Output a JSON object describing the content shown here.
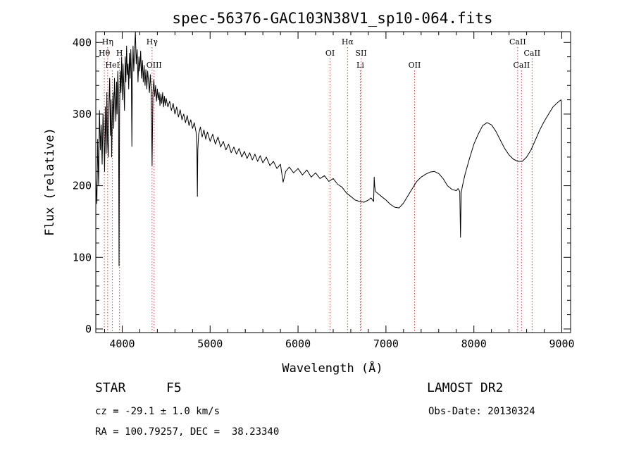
{
  "chart_data": {
    "type": "line",
    "title": "spec-56376-GAC103N38V1_sp10-064.fits",
    "xlabel": "Wavelength (Å)",
    "ylabel": "Flux (relative)",
    "xlim": [
      3700,
      9100
    ],
    "ylim": [
      -5,
      415
    ],
    "xticks": [
      4000,
      5000,
      6000,
      7000,
      8000,
      9000
    ],
    "yticks": [
      0,
      100,
      200,
      300,
      400
    ],
    "grid": false,
    "series": [
      {
        "values": [
          [
            3700,
            210
          ],
          [
            3712,
            175
          ],
          [
            3722,
            265
          ],
          [
            3732,
            200
          ],
          [
            3742,
            305
          ],
          [
            3752,
            250
          ],
          [
            3762,
            285
          ],
          [
            3772,
            230
          ],
          [
            3782,
            300
          ],
          [
            3792,
            265
          ],
          [
            3800,
            220
          ],
          [
            3808,
            310
          ],
          [
            3818,
            245
          ],
          [
            3826,
            330
          ],
          [
            3834,
            260
          ],
          [
            3842,
            240
          ],
          [
            3850,
            315
          ],
          [
            3858,
            350
          ],
          [
            3866,
            270
          ],
          [
            3874,
            320
          ],
          [
            3880,
            240
          ],
          [
            3888,
            300
          ],
          [
            3896,
            330
          ],
          [
            3904,
            280
          ],
          [
            3912,
            350
          ],
          [
            3920,
            320
          ],
          [
            3928,
            290
          ],
          [
            3936,
            345
          ],
          [
            3942,
            300
          ],
          [
            3950,
            360
          ],
          [
            3958,
            330
          ],
          [
            3964,
            88
          ],
          [
            3970,
            300
          ],
          [
            3978,
            360
          ],
          [
            3986,
            330
          ],
          [
            3994,
            380
          ],
          [
            4002,
            320
          ],
          [
            4010,
            370
          ],
          [
            4018,
            340
          ],
          [
            4026,
            305
          ],
          [
            4034,
            380
          ],
          [
            4042,
            345
          ],
          [
            4050,
            395
          ],
          [
            4058,
            355
          ],
          [
            4066,
            370
          ],
          [
            4074,
            335
          ],
          [
            4082,
            385
          ],
          [
            4090,
            350
          ],
          [
            4098,
            390
          ],
          [
            4104,
            360
          ],
          [
            4110,
            255
          ],
          [
            4116,
            350
          ],
          [
            4124,
            395
          ],
          [
            4132,
            360
          ],
          [
            4140,
            385
          ],
          [
            4150,
            415
          ],
          [
            4160,
            370
          ],
          [
            4170,
            390
          ],
          [
            4180,
            345
          ],
          [
            4190,
            380
          ],
          [
            4200,
            360
          ],
          [
            4210,
            388
          ],
          [
            4220,
            350
          ],
          [
            4230,
            375
          ],
          [
            4240,
            345
          ],
          [
            4250,
            368
          ],
          [
            4260,
            340
          ],
          [
            4270,
            362
          ],
          [
            4280,
            335
          ],
          [
            4290,
            360
          ],
          [
            4300,
            345
          ],
          [
            4310,
            330
          ],
          [
            4320,
            355
          ],
          [
            4330,
            335
          ],
          [
            4340,
            228
          ],
          [
            4350,
            330
          ],
          [
            4360,
            348
          ],
          [
            4370,
            325
          ],
          [
            4380,
            340
          ],
          [
            4390,
            318
          ],
          [
            4400,
            335
          ],
          [
            4410,
            320
          ],
          [
            4420,
            330
          ],
          [
            4430,
            312
          ],
          [
            4440,
            328
          ],
          [
            4450,
            315
          ],
          [
            4460,
            330
          ],
          [
            4470,
            310
          ],
          [
            4480,
            325
          ],
          [
            4490,
            312
          ],
          [
            4500,
            322
          ],
          [
            4520,
            310
          ],
          [
            4540,
            318
          ],
          [
            4560,
            305
          ],
          [
            4580,
            315
          ],
          [
            4600,
            300
          ],
          [
            4620,
            310
          ],
          [
            4640,
            296
          ],
          [
            4660,
            306
          ],
          [
            4680,
            292
          ],
          [
            4700,
            300
          ],
          [
            4720,
            288
          ],
          [
            4740,
            298
          ],
          [
            4760,
            284
          ],
          [
            4780,
            292
          ],
          [
            4800,
            280
          ],
          [
            4820,
            288
          ],
          [
            4840,
            275
          ],
          [
            4850,
            255
          ],
          [
            4855,
            185
          ],
          [
            4860,
            250
          ],
          [
            4870,
            272
          ],
          [
            4890,
            282
          ],
          [
            4910,
            268
          ],
          [
            4930,
            278
          ],
          [
            4950,
            265
          ],
          [
            4970,
            275
          ],
          [
            5000,
            262
          ],
          [
            5030,
            272
          ],
          [
            5060,
            258
          ],
          [
            5090,
            268
          ],
          [
            5120,
            254
          ],
          [
            5150,
            262
          ],
          [
            5180,
            250
          ],
          [
            5210,
            258
          ],
          [
            5240,
            246
          ],
          [
            5270,
            254
          ],
          [
            5300,
            244
          ],
          [
            5330,
            252
          ],
          [
            5360,
            240
          ],
          [
            5390,
            248
          ],
          [
            5420,
            238
          ],
          [
            5450,
            246
          ],
          [
            5480,
            236
          ],
          [
            5510,
            244
          ],
          [
            5540,
            234
          ],
          [
            5570,
            242
          ],
          [
            5600,
            232
          ],
          [
            5640,
            240
          ],
          [
            5680,
            228
          ],
          [
            5720,
            234
          ],
          [
            5760,
            224
          ],
          [
            5800,
            230
          ],
          [
            5830,
            205
          ],
          [
            5860,
            220
          ],
          [
            5900,
            226
          ],
          [
            5950,
            218
          ],
          [
            6000,
            224
          ],
          [
            6050,
            215
          ],
          [
            6100,
            222
          ],
          [
            6150,
            212
          ],
          [
            6200,
            218
          ],
          [
            6250,
            210
          ],
          [
            6300,
            214
          ],
          [
            6350,
            206
          ],
          [
            6400,
            210
          ],
          [
            6450,
            202
          ],
          [
            6500,
            198
          ],
          [
            6550,
            190
          ],
          [
            6600,
            185
          ],
          [
            6650,
            180
          ],
          [
            6700,
            178
          ],
          [
            6750,
            177
          ],
          [
            6800,
            180
          ],
          [
            6830,
            183
          ],
          [
            6860,
            178
          ],
          [
            6866,
            212
          ],
          [
            6872,
            200
          ],
          [
            6880,
            192
          ],
          [
            6900,
            190
          ],
          [
            6950,
            185
          ],
          [
            7000,
            180
          ],
          [
            7050,
            174
          ],
          [
            7100,
            170
          ],
          [
            7150,
            169
          ],
          [
            7200,
            176
          ],
          [
            7250,
            186
          ],
          [
            7300,
            196
          ],
          [
            7350,
            206
          ],
          [
            7400,
            212
          ],
          [
            7450,
            216
          ],
          [
            7500,
            219
          ],
          [
            7550,
            220
          ],
          [
            7600,
            217
          ],
          [
            7650,
            210
          ],
          [
            7700,
            200
          ],
          [
            7750,
            195
          ],
          [
            7800,
            193
          ],
          [
            7820,
            196
          ],
          [
            7840,
            192
          ],
          [
            7848,
            128
          ],
          [
            7856,
            190
          ],
          [
            7870,
            200
          ],
          [
            7900,
            216
          ],
          [
            7950,
            238
          ],
          [
            8000,
            258
          ],
          [
            8050,
            272
          ],
          [
            8100,
            284
          ],
          [
            8150,
            288
          ],
          [
            8200,
            285
          ],
          [
            8250,
            276
          ],
          [
            8300,
            264
          ],
          [
            8350,
            252
          ],
          [
            8400,
            243
          ],
          [
            8450,
            237
          ],
          [
            8500,
            234
          ],
          [
            8550,
            234
          ],
          [
            8600,
            240
          ],
          [
            8650,
            250
          ],
          [
            8700,
            264
          ],
          [
            8750,
            278
          ],
          [
            8800,
            290
          ],
          [
            8850,
            300
          ],
          [
            8900,
            310
          ],
          [
            8950,
            316
          ],
          [
            8990,
            320
          ],
          [
            8996,
            316
          ],
          [
            9000,
            5
          ]
        ]
      }
    ],
    "line_markers": [
      {
        "label": "Hη",
        "x": 3835,
        "row": 0
      },
      {
        "label": "Hθ",
        "x": 3797,
        "row": 1
      },
      {
        "label": "H",
        "x": 3970,
        "row": 1
      },
      {
        "label": "HeI",
        "x": 3889,
        "row": 2
      },
      {
        "label": "Hγ",
        "x": 4340,
        "row": 0
      },
      {
        "label": "OIII",
        "x": 4363,
        "row": 2
      },
      {
        "label": "OI",
        "x": 6364,
        "row": 1
      },
      {
        "label": "Hα",
        "x": 6563,
        "row": 0
      },
      {
        "label": "SII",
        "x": 6717,
        "row": 1
      },
      {
        "label": "Li",
        "x": 6708,
        "row": 2
      },
      {
        "label": "OII",
        "x": 7325,
        "row": 2
      },
      {
        "label": "CaII",
        "x": 8498,
        "row": 0
      },
      {
        "label": "CaII",
        "x": 8662,
        "row": 1
      },
      {
        "label": "CaII",
        "x": 8542,
        "row": 2
      }
    ]
  },
  "info": {
    "object_class": "STAR",
    "subclass": "F5",
    "survey": "LAMOST DR2",
    "redshift": "cz = -29.1 ± 1.0 km/s",
    "obs_date": "Obs-Date: 20130324",
    "coords": "RA = 100.79257, DEC =  38.23340"
  }
}
